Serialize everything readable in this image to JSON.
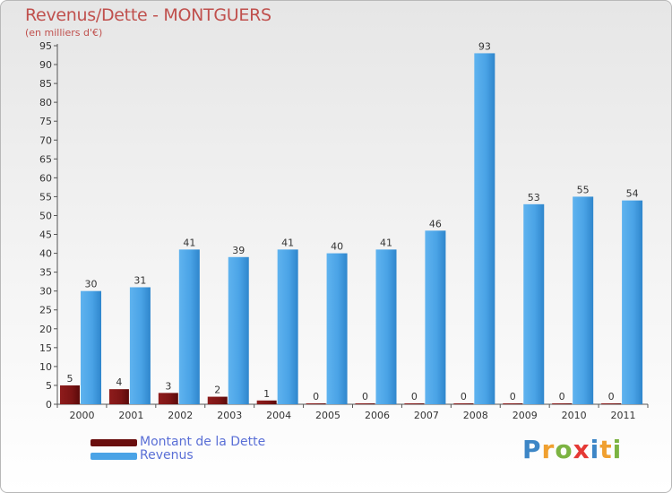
{
  "header": {
    "title": "Revenus/Dette - MONTGUERS",
    "subtitle": "(en milliers d'€)"
  },
  "colors": {
    "dette": "#7b1414",
    "revenus": "#4aa3e6",
    "title": "#c0504d"
  },
  "legend": {
    "items": [
      {
        "label": "Montant de la Dette",
        "color": "#6a0f0f"
      },
      {
        "label": "Revenus",
        "color": "#4aa3e6"
      }
    ]
  },
  "brand": {
    "letters": [
      "P",
      "r",
      "o",
      "x",
      "i",
      "t",
      "i"
    ],
    "colors": [
      "#3d86c6",
      "#f0a030",
      "#7cb342",
      "#e53935",
      "#3d86c6",
      "#f0a030",
      "#7cb342"
    ]
  },
  "chart_data": {
    "type": "bar",
    "title": "Revenus/Dette - MONTGUERS",
    "subtitle": "(en milliers d'€)",
    "categories": [
      "2000",
      "2001",
      "2002",
      "2003",
      "2004",
      "2005",
      "2006",
      "2007",
      "2008",
      "2009",
      "2010",
      "2011"
    ],
    "series": [
      {
        "name": "Montant de la Dette",
        "values": [
          5,
          4,
          3,
          2,
          1,
          0,
          0,
          0,
          0,
          0,
          0,
          0
        ]
      },
      {
        "name": "Revenus",
        "values": [
          30,
          31,
          41,
          39,
          41,
          40,
          41,
          46,
          93,
          53,
          55,
          54
        ]
      }
    ],
    "ylim": [
      0,
      95
    ],
    "ytick_step": 5,
    "grid": false,
    "legend_position": "bottom-left"
  }
}
